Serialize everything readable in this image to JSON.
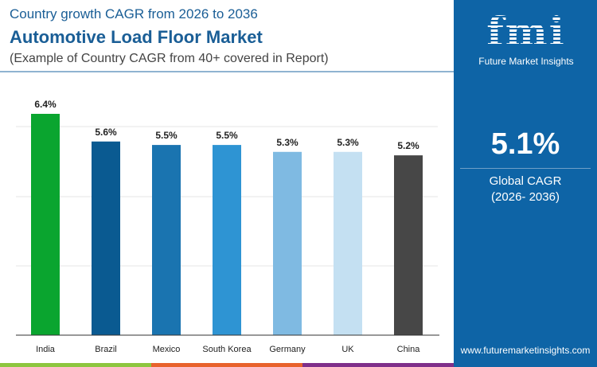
{
  "header": {
    "subtitle": "Country growth CAGR from 2026 to 2036",
    "title": "Automotive Load Floor Market",
    "note": "(Example of Country CAGR from 40+ covered in Report)"
  },
  "sidebar": {
    "logo_text": "fmi",
    "brand": "Future Market Insights",
    "global_value": "5.1%",
    "global_label": "Global CAGR",
    "global_period": "(2026- 2036)",
    "url": "www.futuremarketinsights.com"
  },
  "chart_data": {
    "type": "bar",
    "categories": [
      "India",
      "Brazil",
      "Mexico",
      "South Korea",
      "Germany",
      "UK",
      "China"
    ],
    "values": [
      6.4,
      5.6,
      5.5,
      5.5,
      5.3,
      5.3,
      5.2
    ],
    "data_labels": [
      "6.4%",
      "5.6%",
      "5.5%",
      "5.5%",
      "5.3%",
      "5.3%",
      "5.2%"
    ],
    "colors": [
      "#0aa52f",
      "#0a5a91",
      "#1a74b0",
      "#2e94d3",
      "#7fbae2",
      "#c4e0f2",
      "#474747"
    ],
    "ylim": [
      0,
      6.4
    ],
    "grid": true
  }
}
